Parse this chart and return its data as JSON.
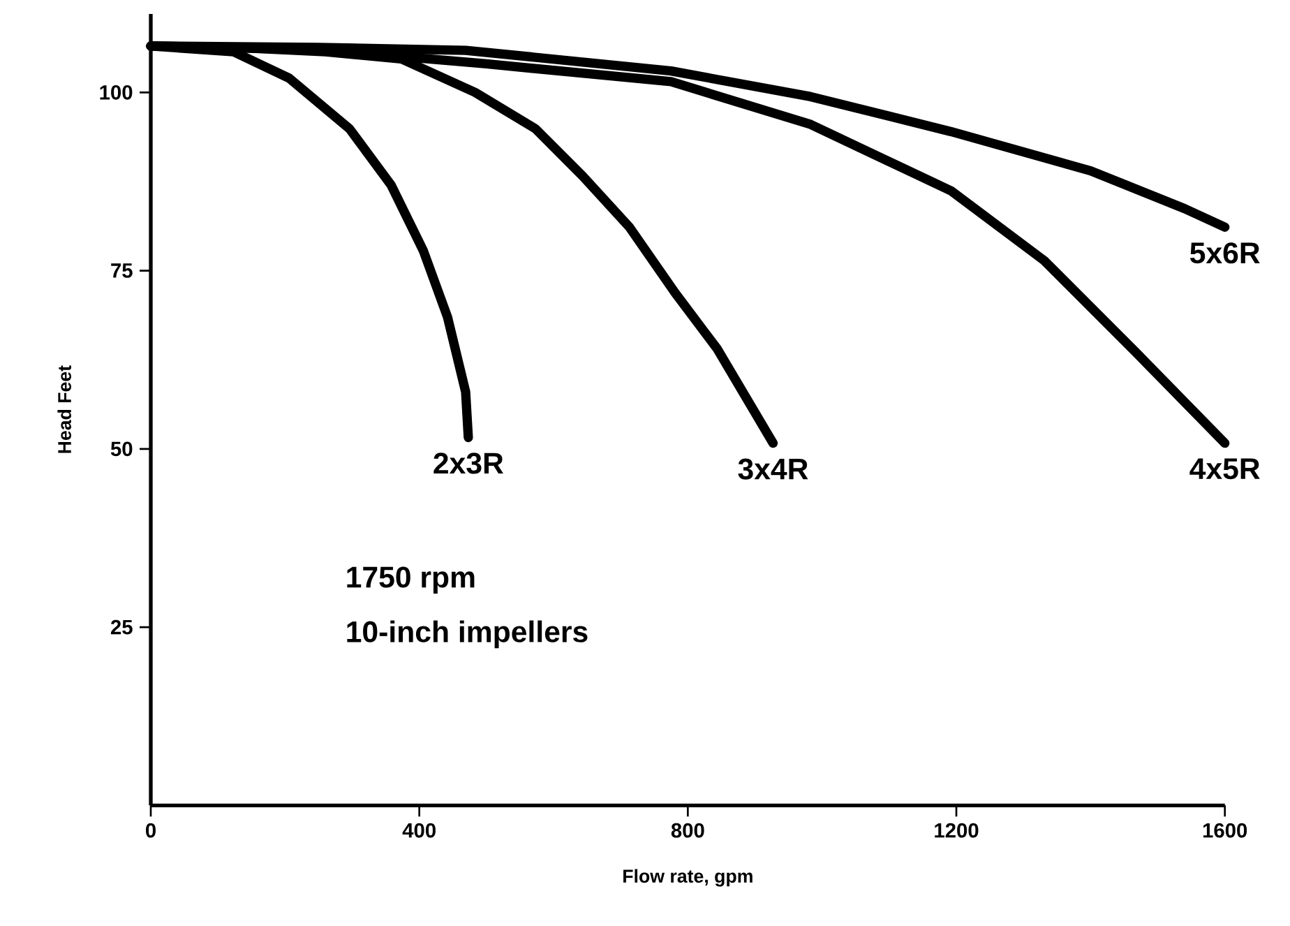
{
  "chart_data": {
    "type": "line",
    "xlabel": "Flow rate, gpm",
    "ylabel": "Head Feet",
    "xlim": [
      0,
      1600
    ],
    "ylim": [
      0,
      111
    ],
    "xticks": [
      0,
      400,
      800,
      1200,
      1600
    ],
    "yticks": [
      25,
      50,
      75,
      100
    ],
    "series": [
      {
        "name": "2x3R",
        "color": "#000000",
        "x": [
          0,
          123,
          206,
          296,
          358,
          406,
          442,
          469,
          473
        ],
        "values": [
          106.5,
          105.7,
          102,
          94.9,
          87,
          77.8,
          68.5,
          58,
          51.6
        ]
      },
      {
        "name": "3x4R",
        "color": "#000000",
        "x": [
          0,
          123,
          260,
          373,
          483,
          573,
          644,
          713,
          781,
          844,
          927
        ],
        "values": [
          106.5,
          106.3,
          105.7,
          104.7,
          100,
          94.9,
          88.2,
          81.1,
          71.9,
          64,
          50.8
        ]
      },
      {
        "name": "4x5R",
        "color": "#000000",
        "x": [
          0,
          250,
          500,
          775,
          983,
          1192,
          1331,
          1469,
          1600
        ],
        "values": [
          106.5,
          106,
          104,
          101.5,
          95.5,
          86.2,
          76.4,
          63.4,
          50.8
        ]
      },
      {
        "name": "5x6R",
        "color": "#000000",
        "x": [
          0,
          250,
          469,
          775,
          983,
          1192,
          1400,
          1540,
          1600
        ],
        "values": [
          106.5,
          106.3,
          105.9,
          103,
          99.4,
          94.5,
          89,
          83.7,
          81.1
        ]
      }
    ],
    "annotations": [
      "1750 rpm",
      "10-inch impellers"
    ],
    "grid": false,
    "marker": "none",
    "line_style": "solid"
  }
}
